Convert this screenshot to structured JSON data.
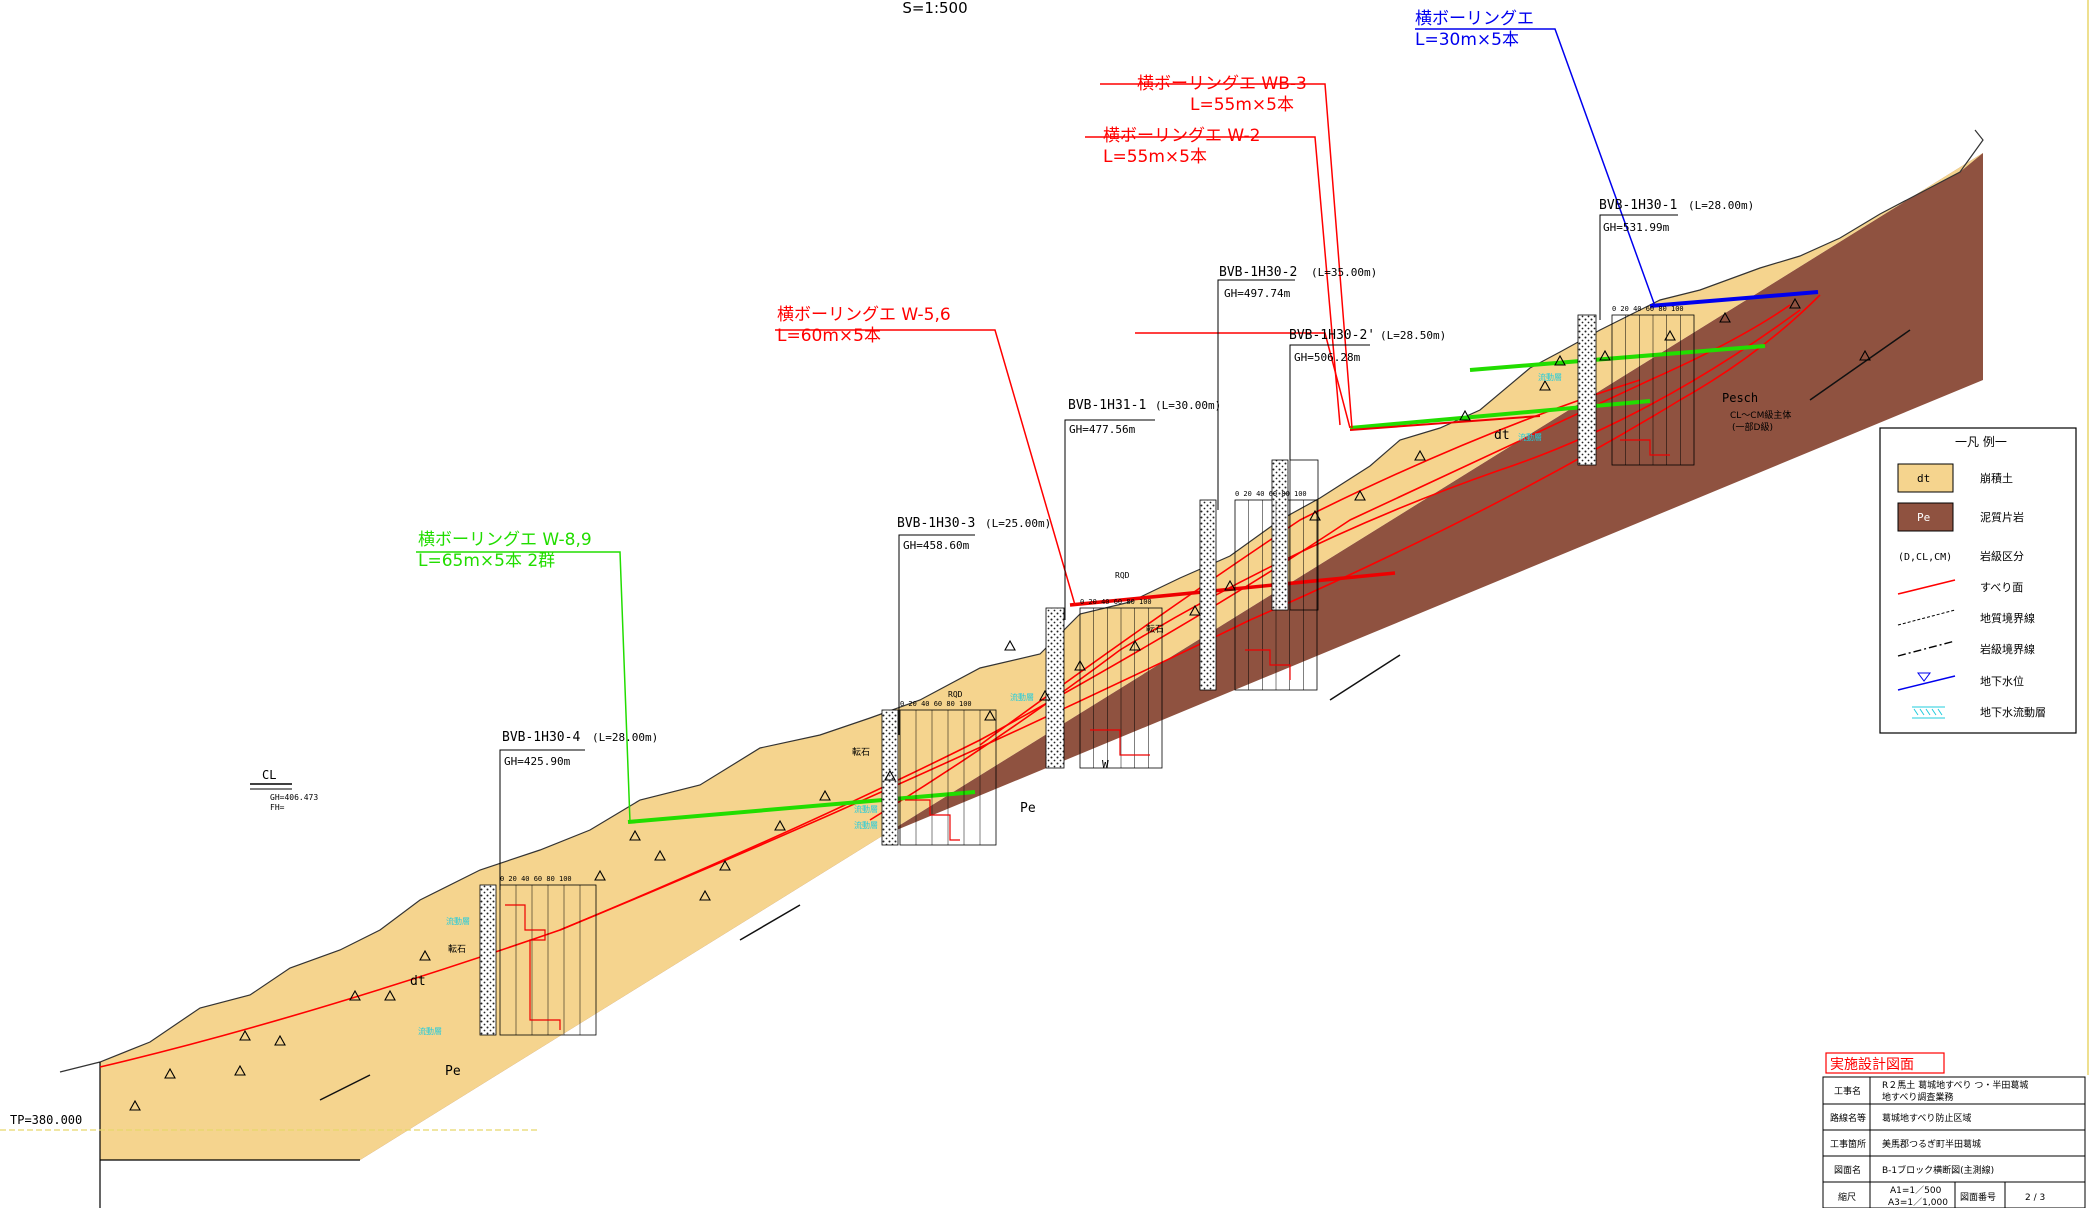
{
  "scale_label": "S=1:500",
  "cl": {
    "label": "CL",
    "gh": "GH=406.473",
    "fh": "FH="
  },
  "tp_label": "TP=380.000",
  "colors": {
    "dt": "#F5D48E",
    "pe": "#8F5240",
    "slip": "#FF0000",
    "red_callout": "#FF0000",
    "green_callout": "#22DD00",
    "blue_callout": "#0000FF",
    "cyan": "#22CCDD"
  },
  "callouts": {
    "wb3": {
      "title": "横ボーリングエ WB-3",
      "length": "L=55m×5本"
    },
    "w2": {
      "title": "横ボーリングエ W-2",
      "length": "L=55m×5本"
    },
    "w56": {
      "title": "横ボーリングエ W-5,6",
      "length": "L=60m×5本"
    },
    "w89": {
      "title": "横ボーリングエ W-8,9",
      "length": "L=65m×5本 2群"
    },
    "top": {
      "title": "横ボーリングエ",
      "length": "L=30m×5本"
    }
  },
  "boreholes": {
    "b4": {
      "name": "BVB-1H30-4",
      "length": "(L=28.00m)",
      "gh": "GH=425.90m"
    },
    "b3": {
      "name": "BVB-1H30-3",
      "length": "(L=25.00m)",
      "gh": "GH=458.60m"
    },
    "b31": {
      "name": "BVB-1H31-1",
      "length": "(L=30.00m)",
      "gh": "GH=477.56m"
    },
    "b2": {
      "name": "BVB-1H30-2",
      "length": "(L=35.00m)",
      "gh": "GH=497.74m"
    },
    "b2p": {
      "name": "BVB-1H30-2'",
      "length": "(L=28.50m)",
      "gh": "GH=506.28m"
    },
    "b1": {
      "name": "BVB-1H30-1",
      "length": "(L=28.00m)",
      "gh": "GH=531.99m"
    }
  },
  "labels": {
    "dt": "dt",
    "pe": "Pe",
    "pesch": "Pesch",
    "pesch_note1": "CL〜CM級主体",
    "pesch_note2": "(一部D級)",
    "tenseki": "転石",
    "ryudoso": "流動層",
    "w": "W",
    "rqd": "RQD",
    "scale": [
      "0",
      "20",
      "40",
      "60",
      "80",
      "100"
    ]
  },
  "legend": {
    "title": "一凡 例一",
    "items": [
      {
        "swatch": "dt",
        "label": "崩積土"
      },
      {
        "swatch": "Pe",
        "label": "泥質片岩"
      },
      {
        "swatch": "(D,CL,CM)",
        "label": "岩級区分"
      },
      {
        "swatch": "",
        "label": "すべり面"
      },
      {
        "swatch": "",
        "label": "地質境界線"
      },
      {
        "swatch": "",
        "label": "岩級境界線"
      },
      {
        "swatch": "",
        "label": "地下水位"
      },
      {
        "swatch": "",
        "label": "地下水流動層"
      }
    ]
  },
  "title_block": {
    "badge": "実施設計図面",
    "rows": [
      {
        "key": "工事名",
        "value1": "R２馬土 葛城地すべり つ・半田葛城",
        "value2": "地すべり調査業務"
      },
      {
        "key": "路線名等",
        "value1": "葛城地すべり防止区域",
        "value2": ""
      },
      {
        "key": "工事箇所",
        "value1": "美馬郡つるぎ町半田葛城",
        "value2": ""
      },
      {
        "key": "図面名",
        "value1": "B-1ブロック横断図(主測線)",
        "value2": ""
      }
    ],
    "scale_key": "縮尺",
    "scale_a1": "A1=1／500",
    "scale_a3": "A3=1／1,000",
    "drawing_no_key": "図面番号",
    "drawing_no": "2 / 3"
  }
}
